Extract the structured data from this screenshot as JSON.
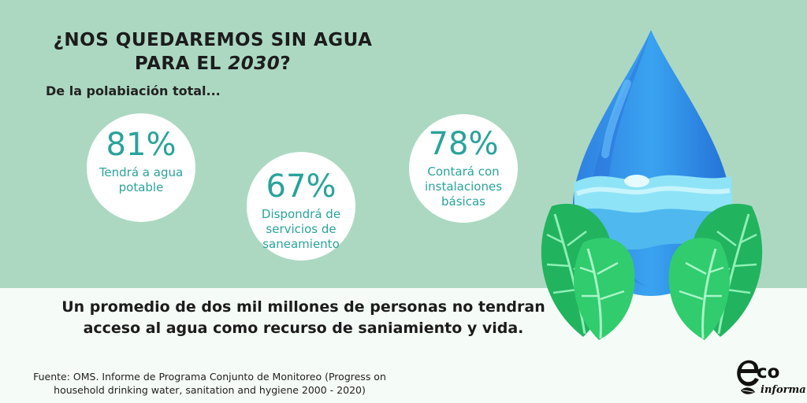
{
  "title": {
    "line1": "¿NOS QUEDAREMOS SIN AGUA",
    "line2_prefix": "PARA EL ",
    "year": "2030",
    "line2_suffix": "?"
  },
  "subtitle": "De la polabiación total...",
  "stats": [
    {
      "percent": "81%",
      "lines": [
        "Tendrá a agua",
        "potable"
      ]
    },
    {
      "percent": "67%",
      "lines": [
        "Dispondrá de",
        "servicios de",
        "saneamiento"
      ]
    },
    {
      "percent": "78%",
      "lines": [
        "Contará con",
        "instalaciones",
        "básicas"
      ]
    }
  ],
  "summary": {
    "line1": "Un promedio de dos mil millones de personas no tendran",
    "line2": "acceso al agua como recurso de saniamiento y vida."
  },
  "source": {
    "line1": "Fuente: OMS. Informe de Programa Conjunto de Monitoreo (Progress on",
    "line2": "household drinking water, sanitation and hygiene 2000 - 2020)"
  },
  "logo": {
    "part1": "co",
    "part2": "informa"
  },
  "colors": {
    "top_band": "#acd8c2",
    "bottom_band": "#f5fbf7",
    "accent": "#2aa39a",
    "drop": "#2f8ee6",
    "leaf": "#2fc66a"
  },
  "icons": [
    "water-drop-icon",
    "leaf-icon",
    "eco-logo-icon"
  ]
}
